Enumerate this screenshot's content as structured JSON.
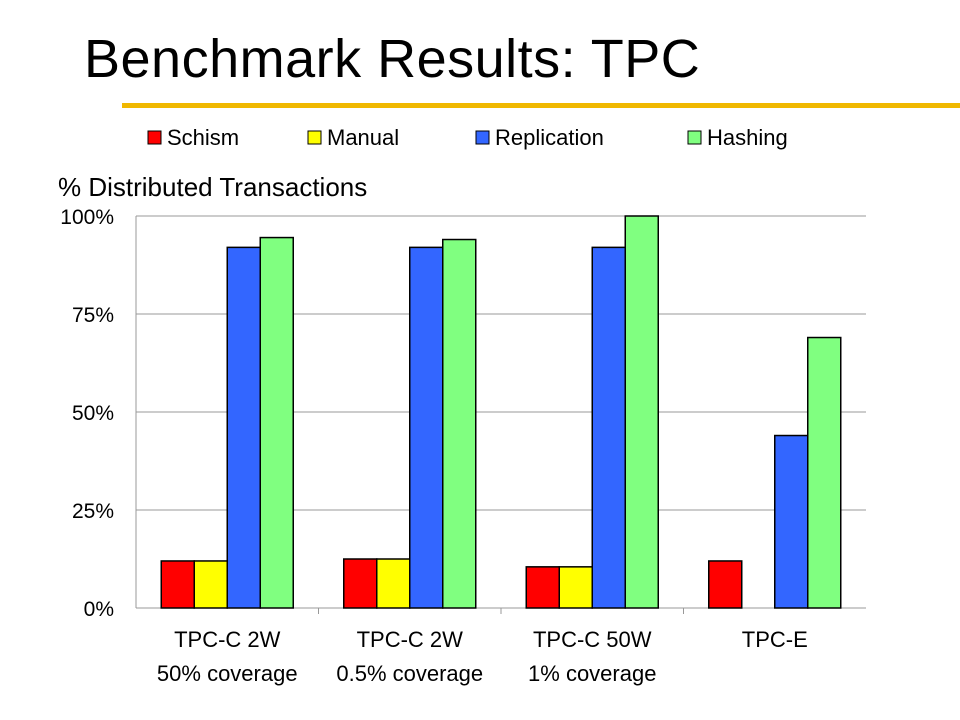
{
  "slide": {
    "title": "Benchmark Results: TPC"
  },
  "colors": {
    "accent_rule": "#f0b800",
    "Schism": "#ff0000",
    "Manual": "#ffff00",
    "Replication": "#3366ff",
    "Hashing": "#80ff80",
    "gridline": "#999999"
  },
  "chart_data": {
    "type": "bar",
    "title": "% Distributed Transactions",
    "xlabel": "",
    "ylabel": "",
    "ylim": [
      0,
      100
    ],
    "yticks": [
      "0%",
      "25%",
      "50%",
      "75%",
      "100%"
    ],
    "ytick_values": [
      0,
      25,
      50,
      75,
      100
    ],
    "grid": true,
    "legend_position": "top",
    "categories": [
      [
        "TPC-C 2W",
        "50% coverage"
      ],
      [
        "TPC-C 2W",
        "0.5% coverage"
      ],
      [
        "TPC-C 50W",
        "1% coverage"
      ],
      [
        "TPC-E"
      ]
    ],
    "series": [
      {
        "name": "Schism",
        "values": [
          12,
          12.5,
          10.5,
          12
        ]
      },
      {
        "name": "Manual",
        "values": [
          12,
          12.5,
          10.5,
          null
        ]
      },
      {
        "name": "Replication",
        "values": [
          92,
          92,
          92,
          44
        ]
      },
      {
        "name": "Hashing",
        "values": [
          94.5,
          94,
          100,
          69
        ]
      }
    ]
  }
}
